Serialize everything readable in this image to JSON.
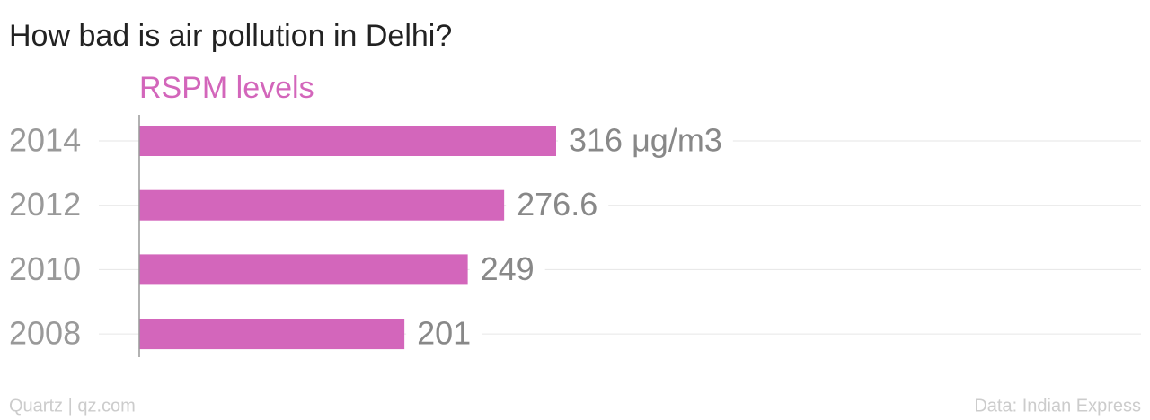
{
  "chart_data": {
    "type": "hbar",
    "title": "How bad is air pollution in Delhi?",
    "subtitle": "RSPM levels",
    "categories": [
      "2014",
      "2012",
      "2010",
      "2008"
    ],
    "values": [
      316,
      276.6,
      249,
      201
    ],
    "value_labels": [
      "316 μg/m3",
      "276.6",
      "249",
      "201"
    ],
    "color": "#d366bb",
    "grid": true,
    "credit": "Quartz | qz.com",
    "source": "Data: Indian Express"
  }
}
